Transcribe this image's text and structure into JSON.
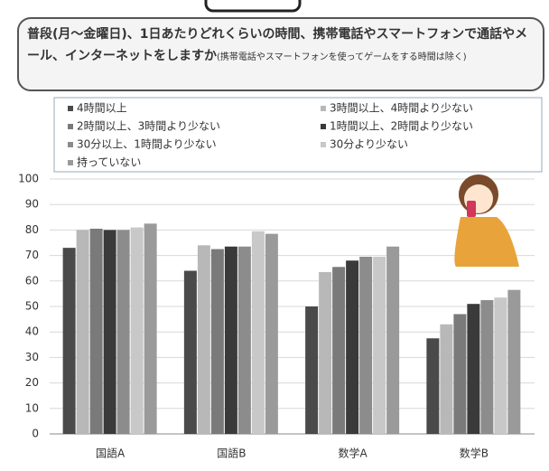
{
  "chart_data": {
    "type": "bar",
    "title": "普段(月～金曜日)、1日あたりどれくらいの時間、携帯電話やスマートフォンで通話やメール、インターネットをしますか",
    "subtitle": "(携帯電話やスマートフォンを使ってゲームをする時間は除く)",
    "categories": [
      "国語A",
      "国語B",
      "数学A",
      "数学B"
    ],
    "series": [
      {
        "name": "4時間以上",
        "color": "#4a4a4a",
        "values": [
          73,
          64,
          50,
          37.5
        ]
      },
      {
        "name": "3時間以上、4時間より少ない",
        "color": "#b8b8b8",
        "values": [
          80,
          74,
          63.5,
          43
        ]
      },
      {
        "name": "2時間以上、3時間より少ない",
        "color": "#7a7a7a",
        "values": [
          80.5,
          72.5,
          65.5,
          47
        ]
      },
      {
        "name": "1時間以上、2時間より少ない",
        "color": "#3a3a3a",
        "values": [
          80,
          73.5,
          68,
          51
        ]
      },
      {
        "name": "30分以上、1時間より少ない",
        "color": "#8c8c8c",
        "values": [
          80,
          73.5,
          69.5,
          52.5
        ]
      },
      {
        "name": "30分より少ない",
        "color": "#c8c8c8",
        "values": [
          81,
          79.5,
          69.5,
          53.5
        ]
      },
      {
        "name": "持っていない",
        "color": "#9a9a9a",
        "values": [
          82.5,
          78.5,
          73.5,
          56.5
        ]
      }
    ],
    "ylim": [
      0,
      100
    ],
    "yticks": [
      0,
      10,
      20,
      30,
      40,
      50,
      60,
      70,
      80,
      90,
      100
    ],
    "grid": true
  }
}
